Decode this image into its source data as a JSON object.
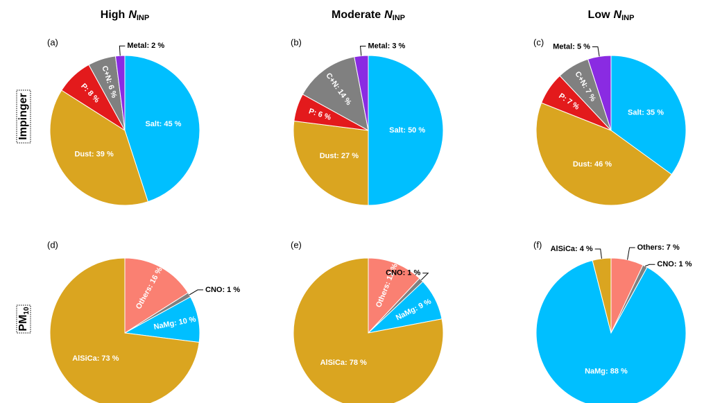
{
  "columns": [
    {
      "prefix": "High",
      "symbol": "N",
      "subscript": "INP"
    },
    {
      "prefix": "Moderate",
      "symbol": "N",
      "subscript": "INP"
    },
    {
      "prefix": "Low",
      "symbol": "N",
      "subscript": "INP"
    }
  ],
  "rows": [
    {
      "text": "Impinger"
    },
    {
      "text": "PM",
      "subscript": "10"
    }
  ],
  "chart_data": [
    {
      "type": "pie",
      "title": "(a)",
      "values": [
        45,
        39,
        8,
        6,
        2
      ],
      "value_labels": [
        "Salt: 45 %",
        "Dust: 39 %",
        "P: 8 %",
        "C+N: 6 %",
        "Metal: 2 %"
      ],
      "colors": [
        "#00bfff",
        "#daa520",
        "#e31a1c",
        "#808080",
        "#8a2be2"
      ]
    },
    {
      "type": "pie",
      "title": "(b)",
      "values": [
        50,
        27,
        6,
        14,
        3
      ],
      "value_labels": [
        "Salt: 50 %",
        "Dust: 27 %",
        "P: 6 %",
        "C+N: 14 %",
        "Metal: 3 %"
      ],
      "colors": [
        "#00bfff",
        "#daa520",
        "#e31a1c",
        "#808080",
        "#8a2be2"
      ]
    },
    {
      "type": "pie",
      "title": "(c)",
      "values": [
        35,
        46,
        7,
        7,
        5
      ],
      "value_labels": [
        "Salt: 35 %",
        "Dust: 46 %",
        "P: 7 %",
        "C+N: 7 %",
        "Metal: 5 %"
      ],
      "colors": [
        "#00bfff",
        "#daa520",
        "#e31a1c",
        "#808080",
        "#8a2be2"
      ]
    },
    {
      "type": "pie",
      "title": "(d)",
      "values": [
        16,
        1,
        10,
        73
      ],
      "value_labels": [
        "Others: 16 %",
        "CNO: 1 %",
        "NaMg: 10 %",
        "AlSiCa: 73 %"
      ],
      "colors": [
        "#fa8072",
        "#808080",
        "#00bfff",
        "#daa520"
      ]
    },
    {
      "type": "pie",
      "title": "(e)",
      "values": [
        12,
        1,
        9,
        78
      ],
      "value_labels": [
        "Others: 12 %",
        "CNO: 1 %",
        "NaMg: 9 %",
        "AlSiCa: 78 %"
      ],
      "colors": [
        "#fa8072",
        "#808080",
        "#00bfff",
        "#daa520"
      ]
    },
    {
      "type": "pie",
      "title": "(f)",
      "values": [
        7,
        1,
        88,
        4
      ],
      "value_labels": [
        "Others: 7 %",
        "CNO: 1 %",
        "NaMg: 88 %",
        "AlSiCa: 4 %"
      ],
      "colors": [
        "#fa8072",
        "#808080",
        "#00bfff",
        "#daa520"
      ]
    }
  ]
}
